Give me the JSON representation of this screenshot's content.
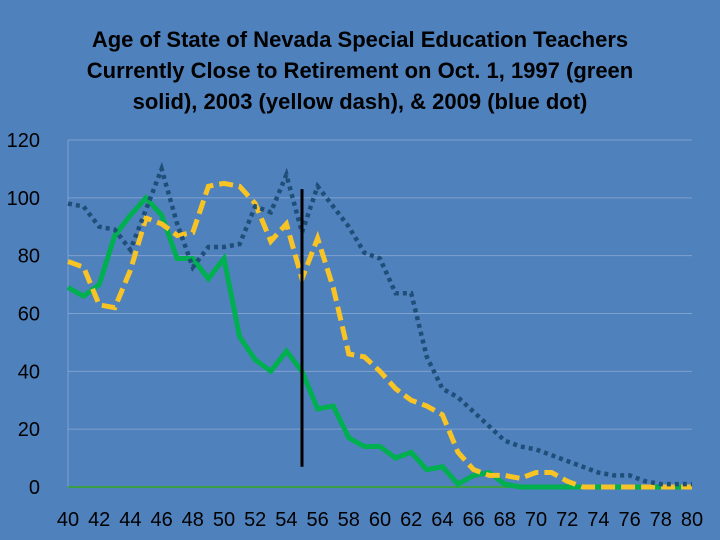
{
  "chart_data": {
    "type": "line",
    "title_lines": [
      "Age of State of Nevada Special Education Teachers",
      "Currently Close to Retirement on Oct. 1, 1997 (green",
      "solid), 2003 (yellow dash), & 2009 (blue dot)"
    ],
    "x": [
      40,
      41,
      42,
      43,
      44,
      45,
      46,
      47,
      48,
      49,
      50,
      51,
      52,
      53,
      54,
      55,
      56,
      57,
      58,
      59,
      60,
      61,
      62,
      63,
      64,
      65,
      66,
      67,
      68,
      69,
      70,
      71,
      72,
      73,
      74,
      75,
      76,
      77,
      78,
      79,
      80
    ],
    "x_tick_labels": [
      "40",
      "42",
      "44",
      "46",
      "48",
      "50",
      "52",
      "54",
      "56",
      "58",
      "60",
      "62",
      "64",
      "66",
      "68",
      "70",
      "72",
      "74",
      "76",
      "78",
      "80"
    ],
    "y_tick_labels": [
      "0",
      "20",
      "40",
      "60",
      "80",
      "100",
      "120"
    ],
    "xlim": [
      40,
      80
    ],
    "ylim": [
      0,
      120
    ],
    "grid": "horizontal",
    "marker_age": 55,
    "marker_top": 103,
    "marker_bottom": 7,
    "series": [
      {
        "color": "#00b050",
        "style": "solid",
        "values": [
          69,
          66,
          70,
          87,
          94,
          100,
          94,
          79,
          79,
          72,
          79,
          52,
          44,
          40,
          47,
          40,
          27,
          28,
          17,
          14,
          14,
          10,
          12,
          6,
          7,
          1,
          4,
          5,
          1,
          0,
          0,
          0,
          0,
          0,
          0,
          0,
          0,
          0,
          0,
          0,
          0
        ]
      },
      {
        "color": "#f7c325",
        "style": "dash",
        "values": [
          78,
          76,
          63,
          62,
          75,
          93,
          91,
          87,
          88,
          104,
          105,
          104,
          98,
          85,
          91,
          72,
          86,
          69,
          46,
          45,
          40,
          34,
          30,
          28,
          25,
          12,
          6,
          4,
          4,
          3,
          5,
          5,
          2,
          0,
          0,
          0,
          0,
          0,
          0,
          0,
          0
        ]
      },
      {
        "color": "#1f4e79",
        "style": "dot",
        "values": [
          98,
          97,
          90,
          89,
          82,
          96,
          110,
          91,
          76,
          83,
          83,
          84,
          97,
          95,
          108,
          88,
          104,
          97,
          90,
          81,
          79,
          67,
          67,
          45,
          34,
          31,
          26,
          21,
          16,
          14,
          13,
          11,
          9,
          7,
          5,
          4,
          4,
          2,
          1,
          1,
          1
        ]
      }
    ]
  }
}
